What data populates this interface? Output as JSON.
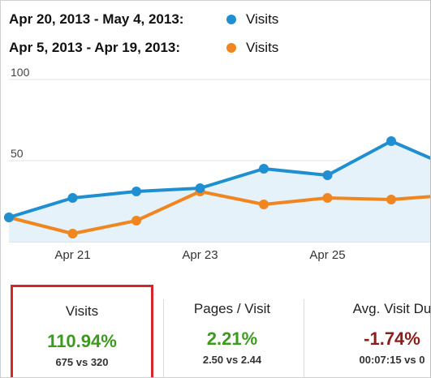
{
  "legend": [
    {
      "range": "Apr 20, 2013 - May 4, 2013:",
      "series": "Visits",
      "color": "#1f8fd1"
    },
    {
      "range": "Apr 5, 2013 - Apr 19, 2013:",
      "series": "Visits",
      "color": "#f0861f"
    }
  ],
  "chart_data": {
    "type": "line",
    "x_ticks": [
      "Apr 21",
      "Apr 23",
      "Apr 25"
    ],
    "y_ticks": [
      100,
      50
    ],
    "ylim": [
      0,
      100
    ],
    "grid": true,
    "series": [
      {
        "name": "Visits",
        "range": "Apr 20, 2013 - May 4, 2013",
        "color": "#1f8fd1",
        "area": true,
        "values": [
          15,
          27,
          31,
          33,
          45,
          41,
          62,
          45
        ]
      },
      {
        "name": "Visits",
        "range": "Apr 5, 2013 - Apr 19, 2013",
        "color": "#f0861f",
        "area": false,
        "values": [
          15,
          5,
          13,
          31,
          23,
          27,
          26,
          29
        ]
      }
    ]
  },
  "scorecards": [
    {
      "label": "Visits",
      "value": "110.94%",
      "compare": "675 vs 320",
      "value_color": "#3c9a1f"
    },
    {
      "label": "Pages / Visit",
      "value": "2.21%",
      "compare": "2.50 vs 2.44",
      "value_color": "#3c9a1f"
    },
    {
      "label": "Avg. Visit Du",
      "value": "-1.74%",
      "compare": "00:07:15 vs 0",
      "value_color": "#8b1d1d"
    }
  ]
}
